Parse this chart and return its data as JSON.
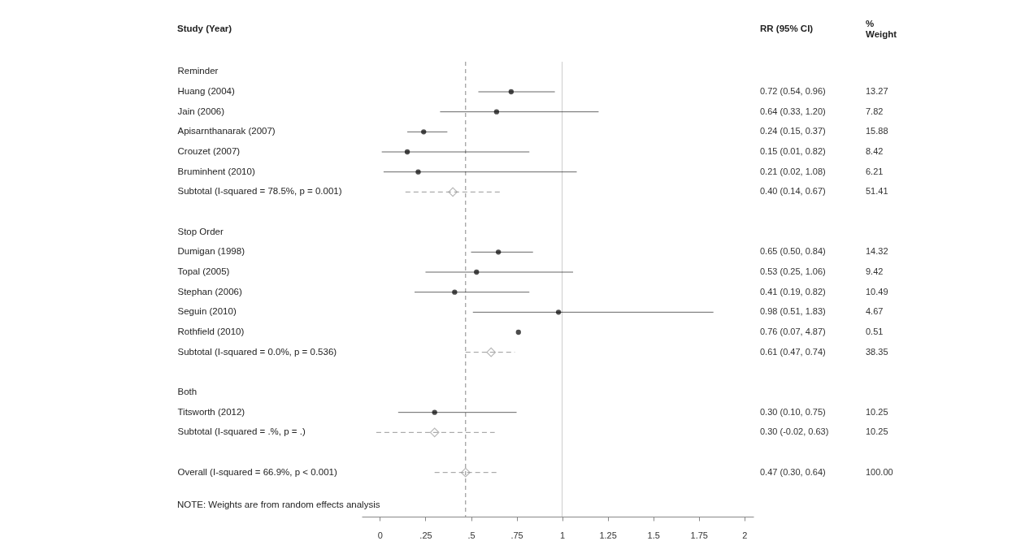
{
  "chart_data": {
    "type": "scatter",
    "orientation": "horizontal",
    "categories": [
      "Reminder",
      "Huang (2004)",
      "Jain (2006)",
      "Apisarnthanarak (2007)",
      "Crouzet (2007)",
      "Bruminhent (2010)",
      "Subtotal  (I-squared = 78.5%, p = 0.001)",
      null,
      "Stop Order",
      "Dumigan (1998)",
      "Topal (2005)",
      "Stephan (2006)",
      "Seguin (2010)",
      "Rothfield (2010)",
      "Subtotal  (I-squared = 0.0%, p = 0.536)",
      null,
      "Both",
      "Titsworth (2012)",
      "Subtotal  (I-squared = .%, p = .)",
      null,
      "Overall  (I-squared = 66.9%, p < 0.001)"
    ],
    "series": [
      {
        "color": "#000000",
        "marker": "circle",
        "values": [
          null,
          0.72,
          0.64,
          0.24,
          0.15,
          0.21,
          null,
          null,
          null,
          0.65,
          0.53,
          0.41,
          0.98,
          0.76,
          null,
          null,
          null,
          0.3,
          null,
          null,
          null
        ],
        "errors": [
          null,
          [
            0.54,
            0.96
          ],
          [
            0.33,
            1.2
          ],
          [
            0.15,
            0.37
          ],
          [
            0.01,
            0.82
          ],
          [
            0.02,
            1.08
          ],
          null,
          null,
          null,
          [
            0.5,
            0.84
          ],
          [
            0.25,
            1.06
          ],
          [
            0.19,
            0.82
          ],
          [
            0.51,
            1.83
          ],
          null,
          null,
          null,
          null,
          [
            0.1,
            0.75
          ],
          null,
          null,
          null
        ],
        "value_labels": [
          null,
          "0.72 (0.54, 0.96)",
          "0.64 (0.33, 1.20)",
          "0.24 (0.15, 0.37)",
          "0.15 (0.01, 0.82)",
          "0.21 (0.02, 1.08)",
          null,
          null,
          null,
          "0.65 (0.50, 0.84)",
          "0.53 (0.25, 1.06)",
          "0.41 (0.19, 0.82)",
          "0.98 (0.51, 1.83)",
          "0.76 (0.07, 4.87)",
          null,
          null,
          null,
          "0.30 (0.10, 0.75)",
          null,
          null,
          null
        ]
      },
      {
        "color": "#999999",
        "marker": "diamond",
        "values": [
          null,
          null,
          null,
          null,
          null,
          null,
          0.4,
          null,
          null,
          null,
          null,
          null,
          null,
          null,
          0.61,
          null,
          null,
          null,
          0.3,
          null,
          0.47
        ],
        "errors": [
          null,
          null,
          null,
          null,
          null,
          null,
          [
            0.14,
            0.67
          ],
          null,
          null,
          null,
          null,
          null,
          null,
          null,
          [
            0.47,
            0.74
          ],
          null,
          null,
          null,
          [
            -0.02,
            0.63
          ],
          null,
          [
            0.3,
            0.64
          ]
        ]
      }
    ],
    "xlim": [
      -0.1,
      2.05
    ],
    "xticks": [
      0,
      {
        "value": 0.25,
        "label": ".25"
      },
      {
        "value": 0.5,
        "label": ".5"
      },
      {
        "value": 0.75,
        "label": ".75"
      },
      1,
      1.25,
      1.5,
      1.75,
      2
    ],
    "ref_lines": [
      {
        "axis": "x",
        "value": 1,
        "color": "#cccccc",
        "line_style": "solid"
      },
      {
        "axis": "x",
        "value": 0.47,
        "color": "#888888",
        "line_style": "dashed"
      }
    ],
    "annotations": [
      "Study (Year)",
      "RR (95% CI)",
      "% Weight",
      "NOTE: Weights are from random effects analysis",
      "13.27",
      "7.82",
      "15.88",
      "8.42",
      "6.21",
      "51.41",
      "14.32",
      "9.42",
      "10.49",
      "4.67",
      "0.51",
      "38.35",
      "10.25",
      "10.25",
      "100.00",
      "0.40 (0.14, 0.67)",
      "0.61 (0.47, 0.74)",
      "0.30 (-0.02, 0.63)",
      "0.47 (0.30, 0.64)"
    ],
    "grid": false
  }
}
